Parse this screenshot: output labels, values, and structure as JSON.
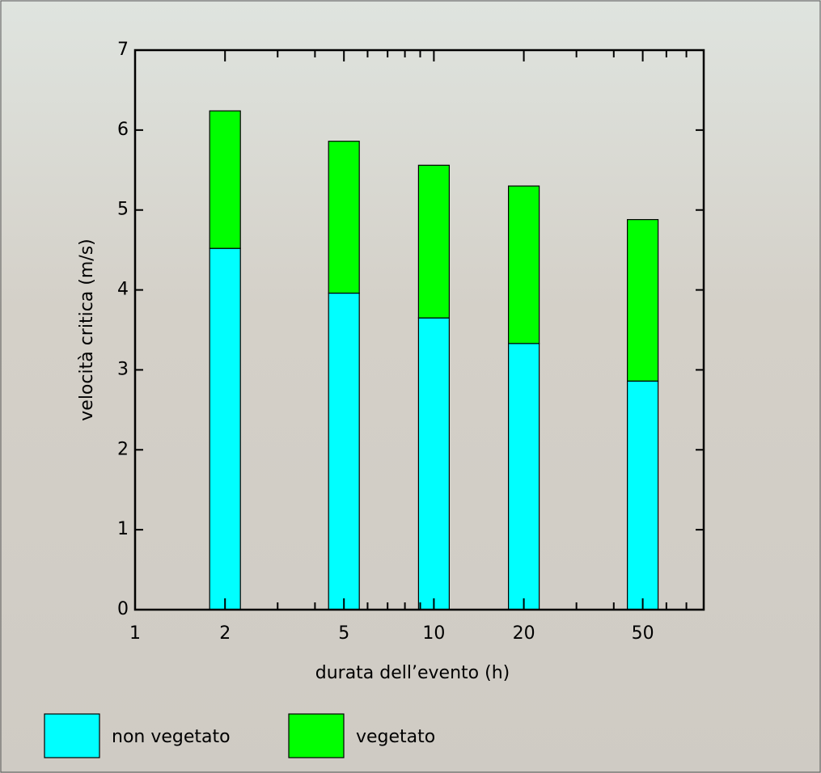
{
  "chart_data": {
    "type": "stacked-bar",
    "x_label": "durata dell’evento (h)",
    "y_label": "velocità critica (m/s)",
    "x": [
      2,
      5,
      10,
      20,
      50
    ],
    "x_log_scale": true,
    "xlim": [
      1,
      80
    ],
    "xticks": [
      1,
      2,
      5,
      10,
      20,
      50
    ],
    "minor_xticks": [
      3,
      4,
      6,
      7,
      8,
      9,
      30,
      40,
      60,
      70,
      80
    ],
    "ylim": [
      0,
      7
    ],
    "yticks": [
      0,
      1,
      2,
      3,
      4,
      5,
      6,
      7
    ],
    "series": [
      {
        "name": "non vegetato",
        "color": "#00ffff",
        "values": [
          4.52,
          3.96,
          3.65,
          3.33,
          2.86
        ]
      },
      {
        "name": "vegetato",
        "color": "#00ff00",
        "values": [
          1.72,
          1.9,
          1.91,
          1.97,
          2.02
        ]
      }
    ]
  }
}
